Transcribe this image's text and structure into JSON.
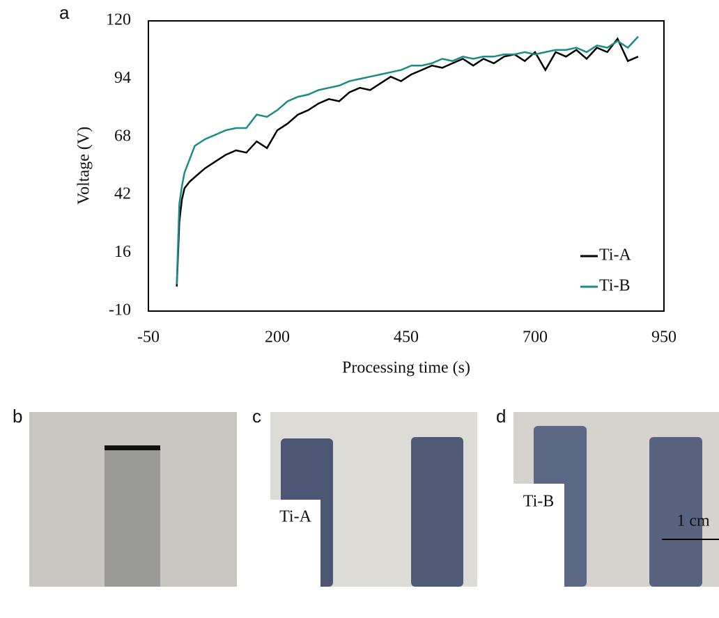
{
  "chart_data": {
    "type": "line",
    "x_label": "Processing time (s)",
    "y_label": "Voltage (V)",
    "xlim": [
      -50,
      950
    ],
    "xticks": [
      -50,
      200,
      450,
      700,
      950
    ],
    "ylim": [
      -10,
      120
    ],
    "yticks": [
      -10,
      16,
      42,
      68,
      94,
      120
    ],
    "legend": "lower right",
    "x": [
      5,
      10,
      15,
      20,
      30,
      40,
      60,
      80,
      100,
      120,
      140,
      160,
      180,
      200,
      220,
      240,
      260,
      280,
      300,
      320,
      340,
      360,
      380,
      400,
      420,
      440,
      460,
      480,
      500,
      520,
      540,
      560,
      580,
      600,
      620,
      640,
      660,
      680,
      700,
      720,
      740,
      760,
      780,
      800,
      820,
      840,
      860,
      880,
      900
    ],
    "series": [
      {
        "name": "Ti-A",
        "color": "#000000",
        "values": [
          1,
          30,
          40,
          45,
          48,
          50,
          54,
          57,
          60,
          62,
          61,
          66,
          63,
          71,
          74,
          78,
          80,
          83,
          85,
          84,
          88,
          90,
          89,
          92,
          95,
          93,
          96,
          98,
          100,
          99,
          101,
          103,
          100,
          103,
          101,
          104,
          105,
          102,
          106,
          98,
          106,
          104,
          107,
          103,
          108,
          106,
          112,
          102,
          104
        ]
      },
      {
        "name": "Ti-B",
        "color": "#1a8a8a",
        "values": [
          2,
          38,
          46,
          52,
          58,
          64,
          67,
          69,
          71,
          72,
          72,
          78,
          77,
          80,
          84,
          86,
          87,
          89,
          90,
          91,
          93,
          94,
          95,
          96,
          97,
          98,
          100,
          100,
          101,
          103,
          102,
          104,
          103,
          104,
          104,
          105,
          105,
          106,
          105,
          106,
          107,
          107,
          108,
          106,
          109,
          108,
          111,
          108,
          113
        ]
      }
    ]
  },
  "panel_labels": [
    "a",
    "b",
    "c",
    "d"
  ],
  "photo_labels": [
    "Ti-A",
    "Ti-B"
  ],
  "scale_bar": "1 cm"
}
